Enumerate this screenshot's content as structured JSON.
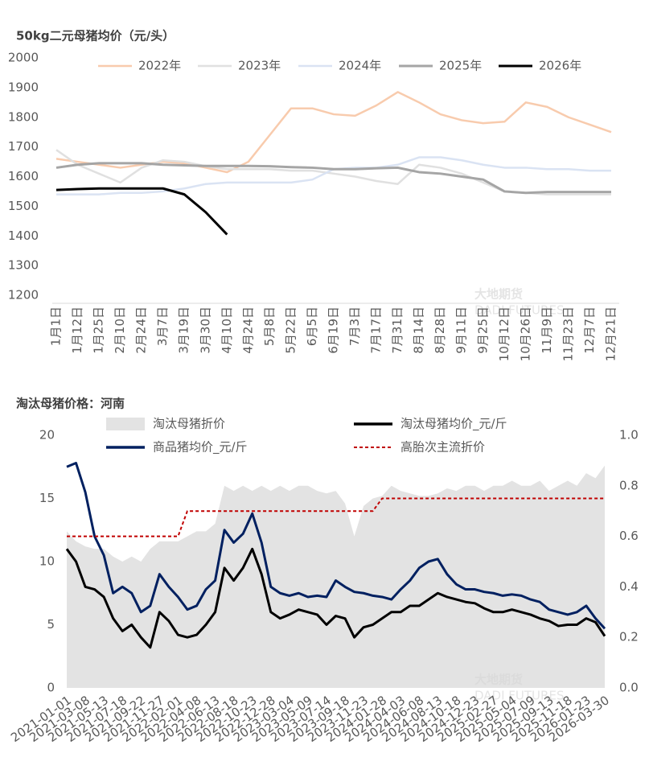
{
  "chart_data": [
    {
      "type": "line",
      "title": "50kg二元母猪均价（元/头）",
      "categories": [
        "1月1日",
        "1月12日",
        "1月25日",
        "2月10日",
        "2月24日",
        "3月7日",
        "3月19日",
        "3月30日",
        "4月10日",
        "4月24日",
        "5月8日",
        "5月22日",
        "6月5日",
        "6月19日",
        "7月3日",
        "7月17日",
        "7月31日",
        "8月14日",
        "8月28日",
        "9月11日",
        "9月25日",
        "10月12日",
        "10月26日",
        "11月9日",
        "11月23日",
        "12月7日",
        "12月21日"
      ],
      "series": [
        {
          "name": "2022年",
          "color": "#f8cbad",
          "values": [
            1660,
            1650,
            1640,
            1630,
            1640,
            1650,
            1645,
            1630,
            1615,
            1650,
            1740,
            1830,
            1830,
            1810,
            1805,
            1840,
            1885,
            1850,
            1810,
            1790,
            1780,
            1785,
            1850,
            1835,
            1800,
            1775,
            1750
          ]
        },
        {
          "name": "2023年",
          "color": "#e0e0e0",
          "values": [
            1690,
            1640,
            1610,
            1580,
            1630,
            1655,
            1650,
            1635,
            1625,
            1625,
            1625,
            1620,
            1620,
            1610,
            1600,
            1585,
            1575,
            1640,
            1630,
            1610,
            1580,
            1550,
            1545,
            1540,
            1540,
            1540,
            1540
          ]
        },
        {
          "name": "2024年",
          "color": "#dae3f3",
          "values": [
            1540,
            1540,
            1540,
            1545,
            1545,
            1550,
            1560,
            1575,
            1580,
            1580,
            1580,
            1580,
            1590,
            1625,
            1630,
            1630,
            1640,
            1665,
            1665,
            1655,
            1640,
            1630,
            1630,
            1625,
            1625,
            1620,
            1620
          ]
        },
        {
          "name": "2025年",
          "color": "#a5a5a5",
          "values": [
            1630,
            1640,
            1645,
            1645,
            1645,
            1640,
            1638,
            1636,
            1636,
            1636,
            1635,
            1632,
            1630,
            1625,
            1625,
            1628,
            1630,
            1615,
            1610,
            1600,
            1590,
            1550,
            1545,
            1548,
            1548,
            1548,
            1548
          ]
        },
        {
          "name": "2026年",
          "color": "#000000",
          "values": [
            1555,
            1558,
            1560,
            1560,
            1560,
            1560,
            1540,
            1480,
            1405,
            null,
            null,
            null,
            null,
            null,
            null,
            null,
            null,
            null,
            null,
            null,
            null,
            null,
            null,
            null,
            null,
            null,
            null
          ]
        }
      ],
      "ylim": [
        1200,
        2000
      ],
      "yticks": [
        1200,
        1300,
        1400,
        1500,
        1600,
        1700,
        1800,
        1900,
        2000
      ],
      "grid": false,
      "watermark": [
        "大地期货",
        "DADI FUTURES"
      ]
    },
    {
      "type": "combo",
      "title": "淘汰母猪价格：河南",
      "categories": [
        "2021-01-01",
        null,
        "2021-03-08",
        null,
        "2021-05-13",
        null,
        "2021-07-18",
        null,
        "2021-09-22",
        null,
        "2021-11-27",
        null,
        "2022-02-01",
        null,
        "2022-04-08",
        null,
        "2022-06-13",
        null,
        "2022-08-18",
        null,
        "2022-10-23",
        null,
        "2022-12-28",
        null,
        "2023-03-04",
        null,
        "2023-05-09",
        null,
        "2023-07-14",
        null,
        "2023-09-18",
        null,
        "2023-11-23",
        null,
        "2024-01-28",
        null,
        "2024-04-03",
        null,
        "2024-06-08",
        null,
        "2024-08-13",
        null,
        "2024-10-18",
        null,
        "2024-12-23",
        null,
        "2025-02-27",
        null,
        "2025-05-04",
        null,
        "2025-07-09",
        null,
        "2025-09-13",
        null,
        "2025-11-18",
        null,
        "2026-01-23",
        null,
        "2026-03-30"
      ],
      "series": [
        {
          "name": "淘汰母猪折价",
          "color": "#e3e3e3",
          "style": "area",
          "axis": "y2",
          "values": [
            0.62,
            0.58,
            0.56,
            0.55,
            0.55,
            0.52,
            0.5,
            0.52,
            0.5,
            0.55,
            0.58,
            0.58,
            0.58,
            0.6,
            0.62,
            0.62,
            0.65,
            0.8,
            0.78,
            0.8,
            0.78,
            0.8,
            0.78,
            0.8,
            0.78,
            0.8,
            0.8,
            0.78,
            0.77,
            0.78,
            0.73,
            0.6,
            0.72,
            0.75,
            0.76,
            0.8,
            0.78,
            0.77,
            0.76,
            0.76,
            0.77,
            0.79,
            0.78,
            0.8,
            0.8,
            0.78,
            0.8,
            0.8,
            0.82,
            0.8,
            0.8,
            0.82,
            0.78,
            0.8,
            0.82,
            0.8,
            0.85,
            0.83,
            0.88
          ]
        },
        {
          "name": "淘汰母猪均价_元/斤",
          "color": "#000000",
          "style": "line",
          "values": [
            11,
            10,
            8,
            7.8,
            7.2,
            5.5,
            4.5,
            5,
            4,
            3.2,
            6,
            5.3,
            4.2,
            4,
            4.2,
            5,
            6,
            9.5,
            8.5,
            9.5,
            11,
            9,
            6,
            5.5,
            5.8,
            6.2,
            6,
            5.8,
            5,
            5.7,
            5.5,
            4,
            4.8,
            5,
            5.5,
            6,
            6,
            6.5,
            6.5,
            7,
            7.5,
            7.2,
            7,
            6.8,
            6.7,
            6.3,
            6,
            6,
            6.2,
            6,
            5.8,
            5.5,
            5.3,
            4.9,
            5,
            5,
            5.5,
            5.2,
            4.1
          ]
        },
        {
          "name": "商品猪均价_元/斤",
          "color": "#002060",
          "style": "line",
          "values": [
            17.5,
            17.8,
            15.5,
            12,
            10.5,
            7.5,
            8,
            7.5,
            6,
            6.5,
            9,
            8,
            7.2,
            6.2,
            6.5,
            7.8,
            8.5,
            12.5,
            11.5,
            12.2,
            13.8,
            11.5,
            8,
            7.5,
            7.3,
            7.5,
            7.2,
            7.3,
            7.2,
            8.5,
            8,
            7.6,
            7.5,
            7.3,
            7.2,
            7,
            7.8,
            8.5,
            9.5,
            10,
            10.2,
            9,
            8.2,
            7.8,
            7.8,
            7.6,
            7.5,
            7.3,
            7.4,
            7.3,
            7,
            6.8,
            6.2,
            6,
            5.8,
            6,
            6.5,
            5.5,
            4.7
          ]
        },
        {
          "name": "高胎次主流折价",
          "color": "#c00000",
          "style": "dashed",
          "axis": "y2",
          "values": [
            0.6,
            0.6,
            0.6,
            0.6,
            0.6,
            0.6,
            0.6,
            0.6,
            0.6,
            0.6,
            0.6,
            0.6,
            0.6,
            0.7,
            0.7,
            0.7,
            0.7,
            0.7,
            0.7,
            0.7,
            0.7,
            0.7,
            0.7,
            0.7,
            0.7,
            0.7,
            0.7,
            0.7,
            0.7,
            0.7,
            0.7,
            0.7,
            0.7,
            0.7,
            0.75,
            0.75,
            0.75,
            0.75,
            0.75,
            0.75,
            0.75,
            0.75,
            0.75,
            0.75,
            0.75,
            0.75,
            0.75,
            0.75,
            0.75,
            0.75,
            0.75,
            0.75,
            0.75,
            0.75,
            0.75,
            0.75,
            0.75,
            0.75,
            0.75
          ]
        }
      ],
      "ylim": [
        0,
        20
      ],
      "yticks": [
        0,
        5,
        10,
        15,
        20
      ],
      "y2lim": [
        0,
        1
      ],
      "y2ticks": [
        {
          "value": 0,
          "label": "0.0"
        },
        0.2,
        0.4,
        0.6,
        0.8,
        {
          "value": 1,
          "label": "1.0"
        }
      ],
      "grid": false,
      "watermark": [
        "大地期货",
        "DADI FUTURES"
      ]
    }
  ]
}
